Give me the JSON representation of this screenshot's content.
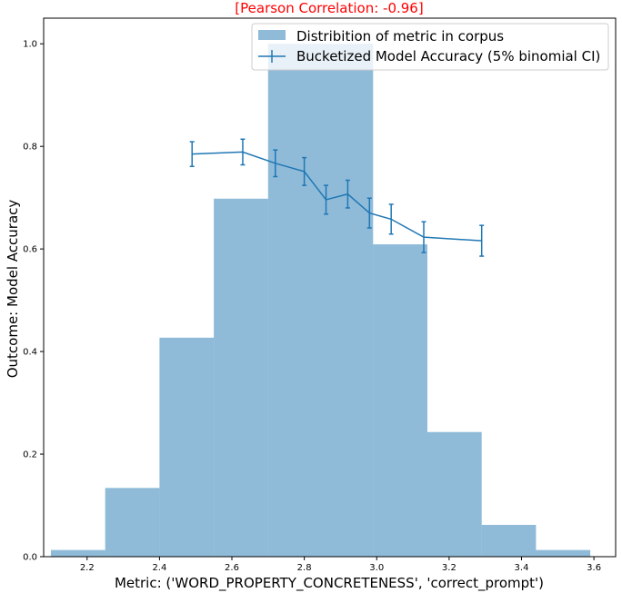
{
  "chart_data": {
    "type": "bar",
    "title": "[Pearson Correlation: -0.96]",
    "title_color": "#ff0000",
    "xlabel": "Metric: ('WORD_PROPERTY_CONCRETENESS', 'correct_prompt')",
    "ylabel": "Outcome: Model Accuracy",
    "xlim": [
      2.08,
      3.66
    ],
    "ylim": [
      0,
      1.05
    ],
    "xticks": [
      "2.2",
      "2.4",
      "2.6",
      "2.8",
      "3.0",
      "3.2",
      "3.4",
      "3.6"
    ],
    "xtick_values": [
      2.2,
      2.4,
      2.6,
      2.8,
      3.0,
      3.2,
      3.4,
      3.6
    ],
    "yticks": [
      "0.0",
      "0.2",
      "0.4",
      "0.6",
      "0.8",
      "1.0"
    ],
    "ytick_values": [
      0.0,
      0.2,
      0.4,
      0.6,
      0.8,
      1.0
    ],
    "legend_position": "top-right",
    "histogram": {
      "name": "Distribition of metric in corpus",
      "color": "#1f77b4",
      "opacity": 0.5,
      "bin_edges": [
        2.1,
        2.25,
        2.4,
        2.55,
        2.7,
        2.84,
        2.99,
        3.14,
        3.29,
        3.44,
        3.59
      ],
      "values": [
        0.013,
        0.134,
        0.427,
        0.698,
        1.0,
        1.0,
        0.609,
        0.243,
        0.062,
        0.013
      ]
    },
    "series": [
      {
        "name": "Bucketized Model Accuracy (5% binomial CI)",
        "color": "#1f77b4",
        "x": [
          2.49,
          2.63,
          2.72,
          2.8,
          2.86,
          2.92,
          2.98,
          3.04,
          3.13,
          3.29
        ],
        "y": [
          0.785,
          0.789,
          0.767,
          0.751,
          0.696,
          0.707,
          0.67,
          0.658,
          0.623,
          0.616
        ],
        "err": [
          0.024,
          0.025,
          0.026,
          0.027,
          0.028,
          0.027,
          0.029,
          0.029,
          0.03,
          0.03
        ]
      }
    ]
  }
}
